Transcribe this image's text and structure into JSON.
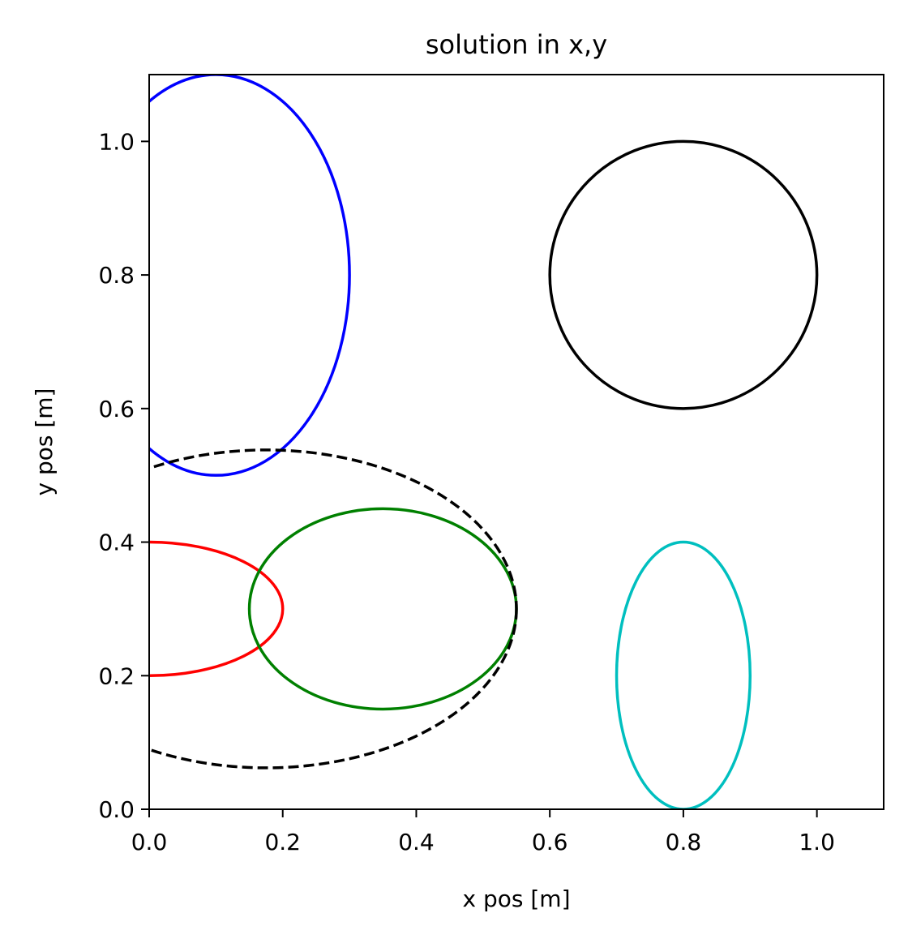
{
  "chart_data": {
    "type": "line",
    "title": "solution in x,y",
    "xlabel": "x pos [m]",
    "ylabel": "y pos [m]",
    "xlim": [
      0.0,
      1.1
    ],
    "ylim": [
      0.0,
      1.1
    ],
    "xticks": [
      "0.0",
      "0.2",
      "0.4",
      "0.6",
      "0.8",
      "1.0"
    ],
    "yticks": [
      "0.0",
      "0.2",
      "0.4",
      "0.6",
      "0.8",
      "1.0"
    ],
    "grid": false,
    "series": [
      {
        "shape": "ellipse",
        "cx": 0.1,
        "cy": 0.8,
        "rx": 0.2,
        "ry": 0.3,
        "color": "#0000ff",
        "dash": "solid"
      },
      {
        "shape": "ellipse",
        "cx": 0.8,
        "cy": 0.8,
        "rx": 0.2,
        "ry": 0.2,
        "color": "#000000",
        "dash": "solid"
      },
      {
        "shape": "ellipse",
        "cx": 0.0,
        "cy": 0.3,
        "rx": 0.2,
        "ry": 0.1,
        "color": "#ff0000",
        "dash": "solid"
      },
      {
        "shape": "ellipse",
        "cx": 0.35,
        "cy": 0.3,
        "rx": 0.2,
        "ry": 0.15,
        "color": "#008000",
        "dash": "solid"
      },
      {
        "shape": "ellipse",
        "cx": 0.8,
        "cy": 0.2,
        "rx": 0.1,
        "ry": 0.2,
        "color": "#00bfbf",
        "dash": "solid"
      },
      {
        "shape": "ellipse",
        "cx": 0.175,
        "cy": 0.3,
        "rx": 0.375,
        "ry": 0.238,
        "color": "#000000",
        "dash": "dashed"
      }
    ]
  }
}
